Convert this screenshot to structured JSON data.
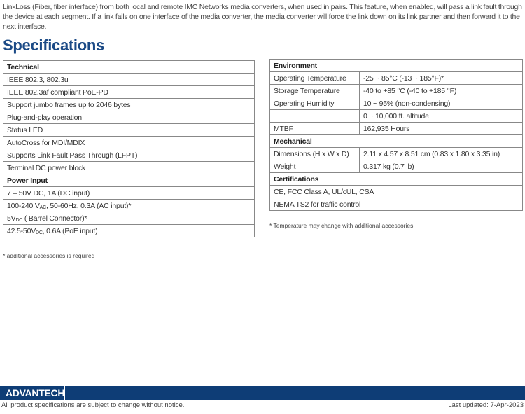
{
  "intro": "LinkLoss (Fiber, fiber interface) from both local and remote IMC Networks media converters, when used in pairs. This feature, when enabled, will pass a link fault through the device at each segment.  If a link fails on one interface of the media converter, the media converter will force the link down on its link partner and then forward it to the next interface.",
  "title": "Specifications",
  "technical": {
    "header": "Technical",
    "items": [
      "IEEE 802.3, 802.3u",
      "IEEE 802.3af compliant PoE-PD",
      "Support jumbo frames up to 2046 bytes",
      "Plug-and-play operation",
      "Status LED",
      "AutoCross for MDI/MDIX",
      "Supports Link Fault Pass Through (LFPT)",
      "Terminal DC power block"
    ]
  },
  "power": {
    "header": "Power Input",
    "items": [
      {
        "a": "7 – 50V DC, 1A (DC input)"
      },
      {
        "a": "100-240 V",
        "sub": "AC",
        "b": ", 50-60Hz, 0.3A (AC input)*"
      },
      {
        "a": "5V",
        "sub": "DC",
        "b": " ( Barrel Connector)*"
      },
      {
        "a": "42.5-50V",
        "sub": "DC",
        "b": ", 0.6A (PoE input)"
      }
    ]
  },
  "left_note": "* additional accessories is required",
  "environment": {
    "header": "Environment",
    "rows": [
      [
        "Operating Temperature",
        "-25 ~ 85°C (-13 ~ 185°F)*"
      ],
      [
        "Storage Temperature",
        "-40 to +85 °C (-40 to +185 °F)"
      ],
      [
        "Operating Humidity",
        "10 ~ 95% (non-condensing)"
      ],
      [
        "",
        "0 ~ 10,000 ft. altitude"
      ],
      [
        "MTBF",
        "162,935 Hours"
      ]
    ]
  },
  "mechanical": {
    "header": "Mechanical",
    "rows": [
      [
        "Dimensions (H x W x D)",
        "2.11 x 4.57 x 8.51 cm (0.83 x 1.80 x 3.35 in)"
      ],
      [
        "Weight",
        "0.317 kg (0.7 lb)"
      ]
    ]
  },
  "certifications": {
    "header": "Certifications",
    "items": [
      "CE, FCC Class A, UL/cUL, CSA",
      "NEMA TS2 for traffic control"
    ]
  },
  "right_note": "* Temperature may change with additional accessories",
  "footer": {
    "logo": "ADVANTECH",
    "notice": "All product specifications are subject to change without notice.",
    "updated": "Last updated: 7-Apr-2023"
  },
  "colors": {
    "brand": "#0e3d76",
    "title": "#1b4a86"
  }
}
